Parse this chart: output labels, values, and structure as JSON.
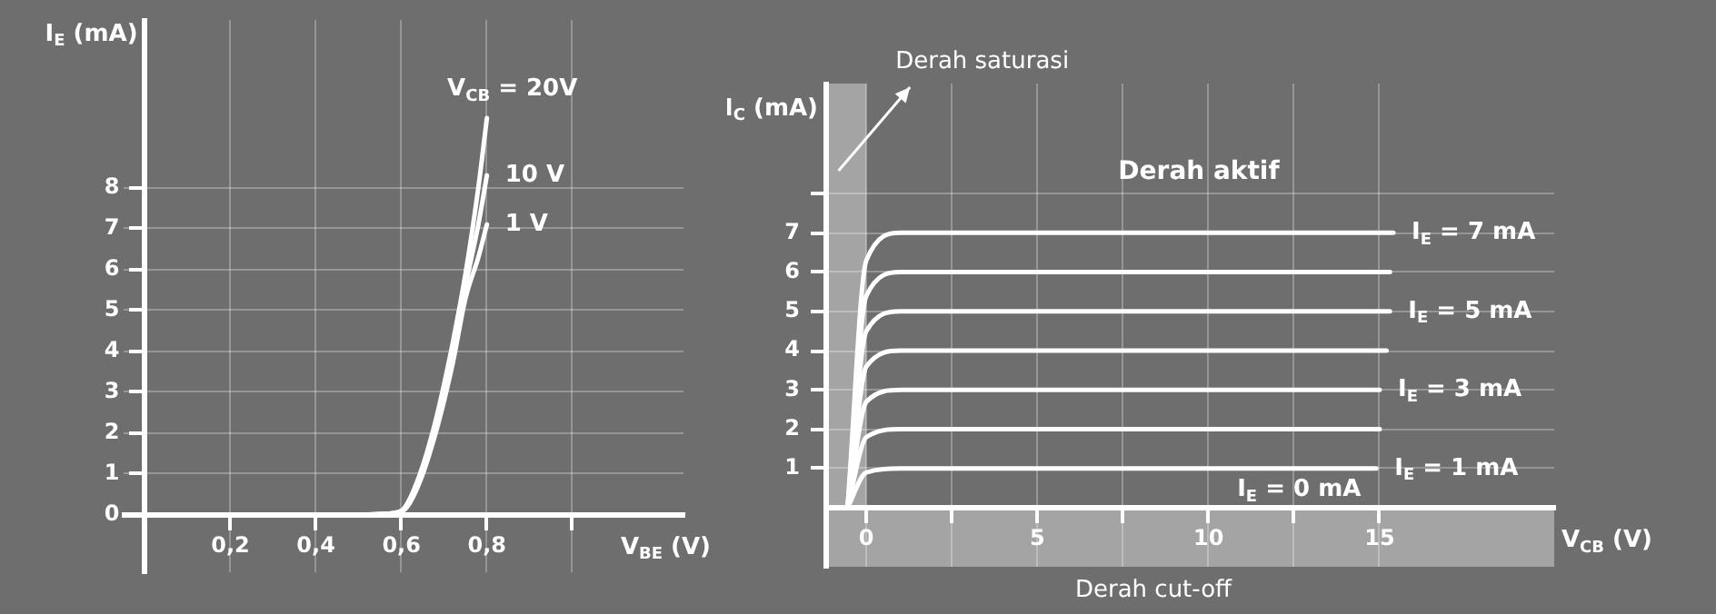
{
  "chart_data": [
    {
      "type": "line",
      "xlabel": "V$_{BE}$ (V)",
      "ylabel": "I$_{E}$ (mA)",
      "xlim": [
        -0.05,
        1.26
      ],
      "ylim": [
        -1.4,
        12.1
      ],
      "xticks": [
        {
          "value": 0.2,
          "label": "0,2"
        },
        {
          "value": 0.4,
          "label": "0,4"
        },
        {
          "value": 0.6,
          "label": "0,6"
        },
        {
          "value": 0.8,
          "label": "0,8"
        },
        {
          "value": 1,
          "label": null
        }
      ],
      "yticks": [
        0,
        1,
        2,
        3,
        4,
        5,
        6,
        7,
        8
      ],
      "grid": true,
      "series": [
        {
          "name": "V$_{CB}$ = 20V",
          "color": "#ffffff",
          "x": [
            0.5,
            0.55,
            0.6,
            0.62,
            0.65,
            0.68,
            0.7,
            0.72,
            0.75,
            0.78,
            0.8
          ],
          "values": [
            0,
            0.02,
            0.1,
            0.4,
            1.2,
            2.3,
            3.2,
            4.2,
            5.9,
            8.0,
            9.7
          ]
        },
        {
          "name": "10 V",
          "color": "#ffffff",
          "x": [
            0.5,
            0.55,
            0.6,
            0.62,
            0.65,
            0.68,
            0.7,
            0.72,
            0.75,
            0.78,
            0.8
          ],
          "values": [
            0,
            0.02,
            0.1,
            0.35,
            1.1,
            2.2,
            3.0,
            3.9,
            5.6,
            7.1,
            8.3
          ]
        },
        {
          "name": "1 V",
          "color": "#ffffff",
          "x": [
            0.5,
            0.55,
            0.6,
            0.62,
            0.65,
            0.68,
            0.7,
            0.72,
            0.75,
            0.78,
            0.8
          ],
          "values": [
            0,
            0.02,
            0.08,
            0.3,
            1.0,
            2.0,
            2.8,
            3.7,
            5.3,
            6.3,
            7.1
          ]
        }
      ]
    },
    {
      "type": "line",
      "xlabel": "V$_{CB}$ (V)",
      "ylabel": "I$_{C}$ (mA)",
      "xlim": [
        -1.2,
        20.1
      ],
      "ylim": [
        -1.5,
        10.8
      ],
      "xticks": [
        0,
        {
          "value": 2.5,
          "label": null
        },
        5,
        {
          "value": 7.5,
          "label": null
        },
        10,
        {
          "value": 12.5,
          "label": null
        },
        15
      ],
      "yticks": [
        1,
        2,
        3,
        4,
        5,
        6,
        7,
        {
          "value": 8,
          "label": null
        }
      ],
      "grid": true,
      "bands": [
        {
          "axis": "x",
          "from": -1.2,
          "to": 0,
          "label": "Derah saturasi",
          "color": "#a4a4a4"
        },
        {
          "axis": "y",
          "from": -1.5,
          "to": 0,
          "label": "Derah cut-off",
          "color": "#a4a4a4"
        }
      ],
      "annotations": [
        "Derah aktif",
        "I$_{E}$ = 0 mA"
      ],
      "series": [
        {
          "name": "I$_{E}$ = 1 mA",
          "color": "#ffffff",
          "x": [
            -0.55,
            0,
            1,
            14.9
          ],
          "values": [
            0,
            0.9,
            1,
            1
          ]
        },
        {
          "color": "#ffffff",
          "x": [
            -0.55,
            0,
            1,
            15.0
          ],
          "values": [
            0,
            1.8,
            2,
            2
          ]
        },
        {
          "name": "I$_{E}$ = 3 mA",
          "color": "#ffffff",
          "x": [
            -0.55,
            0,
            1,
            15.0
          ],
          "values": [
            0,
            2.7,
            3,
            3
          ]
        },
        {
          "color": "#ffffff",
          "x": [
            -0.55,
            0,
            1,
            15.2
          ],
          "values": [
            0,
            3.6,
            4,
            4
          ]
        },
        {
          "name": "I$_{E}$ = 5 mA",
          "color": "#ffffff",
          "x": [
            -0.55,
            0,
            1,
            15.3
          ],
          "values": [
            0,
            4.5,
            5,
            5
          ]
        },
        {
          "color": "#ffffff",
          "x": [
            -0.55,
            0,
            1,
            15.3
          ],
          "values": [
            0,
            5.4,
            6,
            6
          ]
        },
        {
          "name": "I$_{E}$ = 7 mA",
          "color": "#ffffff",
          "x": [
            -0.55,
            0,
            1,
            15.4
          ],
          "values": [
            0,
            6.3,
            7,
            7
          ]
        }
      ]
    }
  ]
}
